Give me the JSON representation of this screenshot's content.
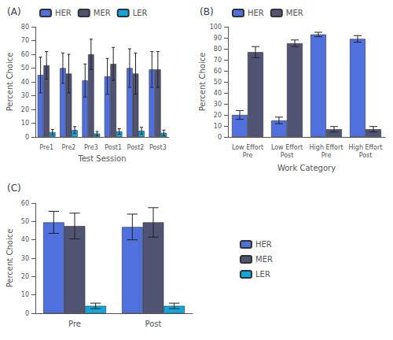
{
  "chart_data": [
    {
      "type": "bar",
      "title": "(A)",
      "categories": [
        "Pre1",
        "Pre2",
        "Pre3",
        "Post1",
        "Post2",
        "Post3"
      ],
      "series": [
        {
          "name": "HER",
          "values": [
            45,
            50,
            41,
            44,
            50,
            49
          ],
          "errors": [
            13,
            11,
            12,
            13,
            14,
            13
          ]
        },
        {
          "name": "MER",
          "values": [
            52,
            46,
            60,
            53,
            46,
            49
          ],
          "errors": [
            10,
            14,
            11,
            12,
            15,
            13
          ]
        },
        {
          "name": "LER",
          "values": [
            3.5,
            5,
            2.5,
            4,
            4.5,
            3
          ],
          "errors": [
            2,
            2.5,
            1.5,
            2,
            2.5,
            2
          ]
        }
      ],
      "xlabel": "Test Session",
      "ylabel": "Percent Choice",
      "ylim": [
        0,
        80
      ],
      "yticks": [
        0,
        10,
        20,
        30,
        40,
        50,
        60,
        70,
        80
      ],
      "grid": false,
      "legend": "upper left"
    },
    {
      "type": "bar",
      "title": "(B)",
      "categories": [
        "Low Effort\nPre",
        "Low Effort\nPost",
        "High Effort\nPre",
        "High Effort\nPost"
      ],
      "series": [
        {
          "name": "HER",
          "values": [
            20,
            15,
            93,
            89
          ],
          "errors": [
            4,
            3,
            2,
            3
          ]
        },
        {
          "name": "MER",
          "values": [
            77,
            85,
            7,
            7
          ],
          "errors": [
            5,
            3,
            2.5,
            2.5
          ]
        }
      ],
      "xlabel": "Work Category",
      "ylabel": "Percent Choice",
      "ylim": [
        0,
        100
      ],
      "yticks": [
        0,
        10,
        20,
        30,
        40,
        50,
        60,
        70,
        80,
        90,
        100
      ],
      "grid": false,
      "legend": "upper left"
    },
    {
      "type": "bar",
      "title": "(C)",
      "categories": [
        "Pre",
        "Post"
      ],
      "series": [
        {
          "name": "HER",
          "values": [
            49.5,
            47
          ],
          "errors": [
            6,
            7
          ]
        },
        {
          "name": "MER",
          "values": [
            47.5,
            49.5
          ],
          "errors": [
            7,
            8
          ]
        },
        {
          "name": "LER",
          "values": [
            4,
            4
          ],
          "errors": [
            1.5,
            1.5
          ]
        }
      ],
      "ylabel": "Percent Choice",
      "ylim": [
        0,
        60
      ],
      "yticks": [
        0,
        10,
        20,
        30,
        40,
        50,
        60
      ],
      "grid": false,
      "legend": "right"
    }
  ]
}
